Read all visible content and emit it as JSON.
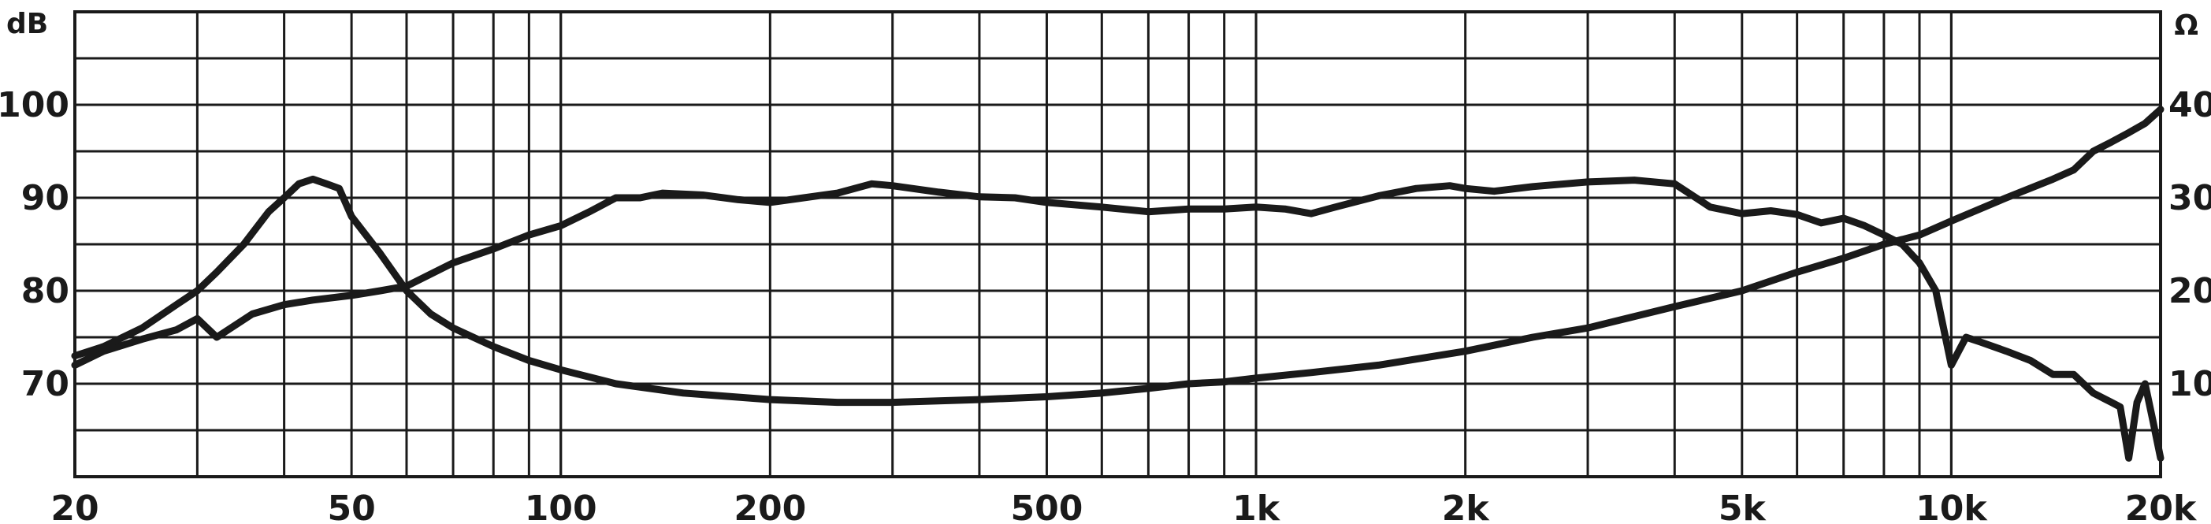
{
  "chart_data": {
    "type": "line",
    "xscale": "log",
    "xlim": [
      20,
      20000
    ],
    "ylim_left": [
      60,
      110
    ],
    "ylim_right": [
      0,
      50
    ],
    "grid": true,
    "ylabel_left": "dB",
    "ylabel_right": "Ω",
    "x_ticks": [
      {
        "value": 20,
        "label": "20"
      },
      {
        "value": 50,
        "label": "50"
      },
      {
        "value": 100,
        "label": "100"
      },
      {
        "value": 200,
        "label": "200"
      },
      {
        "value": 500,
        "label": "500"
      },
      {
        "value": 1000,
        "label": "1k"
      },
      {
        "value": 2000,
        "label": "2k"
      },
      {
        "value": 5000,
        "label": "5k"
      },
      {
        "value": 10000,
        "label": "10k"
      },
      {
        "value": 20000,
        "label": "20k"
      }
    ],
    "y_ticks_left": [
      {
        "value": 70,
        "label": "70"
      },
      {
        "value": 80,
        "label": "80"
      },
      {
        "value": 90,
        "label": "90"
      },
      {
        "value": 100,
        "label": "100"
      }
    ],
    "y_ticks_right": [
      {
        "value": 10,
        "label": "10"
      },
      {
        "value": 20,
        "label": "20"
      },
      {
        "value": 30,
        "label": "30"
      },
      {
        "value": 40,
        "label": "40"
      }
    ],
    "line_color": "#1a1a1a",
    "grid_color": "#1a1a1a",
    "series": [
      {
        "axis": "left",
        "points": [
          [
            20,
            72
          ],
          [
            22,
            73.5
          ],
          [
            25,
            74.8
          ],
          [
            28,
            75.8
          ],
          [
            30,
            77
          ],
          [
            32,
            75
          ],
          [
            36,
            77.5
          ],
          [
            40,
            78.5
          ],
          [
            44,
            79
          ],
          [
            50,
            79.5
          ],
          [
            55,
            80
          ],
          [
            60,
            80.5
          ],
          [
            70,
            83
          ],
          [
            80,
            84.5
          ],
          [
            90,
            86
          ],
          [
            100,
            87
          ],
          [
            110,
            88.5
          ],
          [
            120,
            90
          ],
          [
            130,
            90
          ],
          [
            140,
            90.5
          ],
          [
            160,
            90.3
          ],
          [
            180,
            89.8
          ],
          [
            200,
            89.5
          ],
          [
            250,
            90.5
          ],
          [
            280,
            91.5
          ],
          [
            300,
            91.3
          ],
          [
            350,
            90.6
          ],
          [
            400,
            90.1
          ],
          [
            450,
            90
          ],
          [
            500,
            89.5
          ],
          [
            600,
            89
          ],
          [
            700,
            88.5
          ],
          [
            800,
            88.8
          ],
          [
            900,
            88.8
          ],
          [
            1000,
            89
          ],
          [
            1100,
            88.8
          ],
          [
            1200,
            88.3
          ],
          [
            1300,
            89
          ],
          [
            1500,
            90.2
          ],
          [
            1700,
            91
          ],
          [
            1900,
            91.3
          ],
          [
            2000,
            91
          ],
          [
            2200,
            90.7
          ],
          [
            2500,
            91.2
          ],
          [
            3000,
            91.7
          ],
          [
            3500,
            91.9
          ],
          [
            4000,
            91.5
          ],
          [
            4500,
            89
          ],
          [
            5000,
            88.3
          ],
          [
            5500,
            88.6
          ],
          [
            6000,
            88.2
          ],
          [
            6500,
            87.3
          ],
          [
            7000,
            87.8
          ],
          [
            7500,
            87
          ],
          [
            8000,
            86
          ],
          [
            8500,
            85
          ],
          [
            9000,
            83
          ],
          [
            9500,
            80
          ],
          [
            10000,
            72
          ],
          [
            10500,
            75
          ],
          [
            11000,
            74.5
          ],
          [
            12000,
            73.5
          ],
          [
            13000,
            72.5
          ],
          [
            14000,
            71
          ],
          [
            15000,
            71
          ],
          [
            16000,
            69
          ],
          [
            17000,
            68
          ],
          [
            17500,
            67.5
          ],
          [
            18000,
            62
          ],
          [
            18500,
            68
          ],
          [
            19000,
            70
          ],
          [
            19500,
            66
          ],
          [
            20000,
            62
          ]
        ]
      },
      {
        "axis": "right",
        "points": [
          [
            20,
            13
          ],
          [
            22,
            14
          ],
          [
            25,
            16
          ],
          [
            28,
            18.5
          ],
          [
            30,
            20
          ],
          [
            32,
            22
          ],
          [
            35,
            25
          ],
          [
            38,
            28.5
          ],
          [
            40,
            30
          ],
          [
            42,
            31.5
          ],
          [
            44,
            32
          ],
          [
            46,
            31.5
          ],
          [
            48,
            31
          ],
          [
            50,
            28
          ],
          [
            55,
            24
          ],
          [
            60,
            20
          ],
          [
            65,
            17.5
          ],
          [
            70,
            16
          ],
          [
            80,
            14
          ],
          [
            90,
            12.5
          ],
          [
            100,
            11.5
          ],
          [
            120,
            10
          ],
          [
            150,
            9
          ],
          [
            200,
            8.3
          ],
          [
            250,
            8
          ],
          [
            300,
            8
          ],
          [
            400,
            8.3
          ],
          [
            500,
            8.6
          ],
          [
            600,
            9
          ],
          [
            700,
            9.5
          ],
          [
            800,
            10
          ],
          [
            900,
            10.2
          ],
          [
            1000,
            10.6
          ],
          [
            1200,
            11.2
          ],
          [
            1500,
            12
          ],
          [
            2000,
            13.5
          ],
          [
            2500,
            15
          ],
          [
            3000,
            16
          ],
          [
            4000,
            18.3
          ],
          [
            5000,
            20
          ],
          [
            6000,
            22
          ],
          [
            7000,
            23.5
          ],
          [
            8000,
            25
          ],
          [
            9000,
            26
          ],
          [
            10000,
            27.5
          ],
          [
            12000,
            30
          ],
          [
            14000,
            32
          ],
          [
            15000,
            33
          ],
          [
            16000,
            35
          ],
          [
            17000,
            36
          ],
          [
            18000,
            37
          ],
          [
            19000,
            38
          ],
          [
            20000,
            39.5
          ]
        ]
      }
    ]
  }
}
